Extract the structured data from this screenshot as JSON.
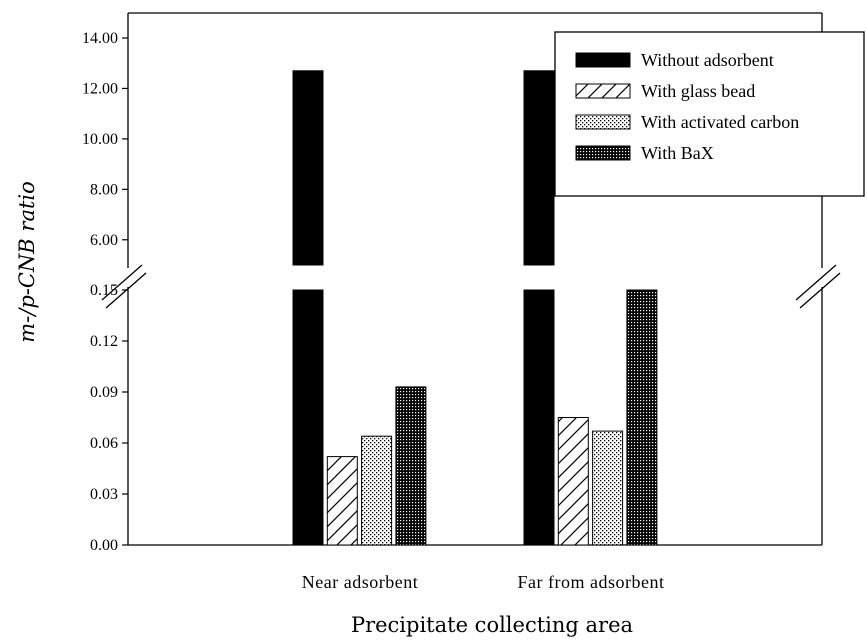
{
  "chart_data": {
    "type": "bar",
    "xlabel": "Precipitate collecting area",
    "ylabel": "m-/p-CNB ratio",
    "categories": [
      "Near adsorbent",
      "Far from adsorbent"
    ],
    "series": [
      {
        "name": "Without adsorbent",
        "values": [
          12.7,
          12.7
        ],
        "color": "#000000"
      },
      {
        "name": "With glass bead",
        "values": [
          0.052,
          0.075
        ],
        "color": "#ffffff"
      },
      {
        "name": "With activated carbon",
        "values": [
          0.064,
          0.067
        ],
        "color": "#e8e8e8"
      },
      {
        "name": "With BaX",
        "values": [
          0.093,
          0.15
        ],
        "color": "#3a3a3a"
      }
    ],
    "axis_break": {
      "lower_range": [
        0,
        0.15
      ],
      "upper_range": [
        5,
        14
      ],
      "lower_ticks": [
        "0.00",
        "0.03",
        "0.06",
        "0.09",
        "0.12",
        "0.15"
      ],
      "upper_ticks": [
        "6.00",
        "8.00",
        "10.00",
        "12.00",
        "14.00"
      ]
    },
    "legend_position": "top-right",
    "grid": false
  }
}
